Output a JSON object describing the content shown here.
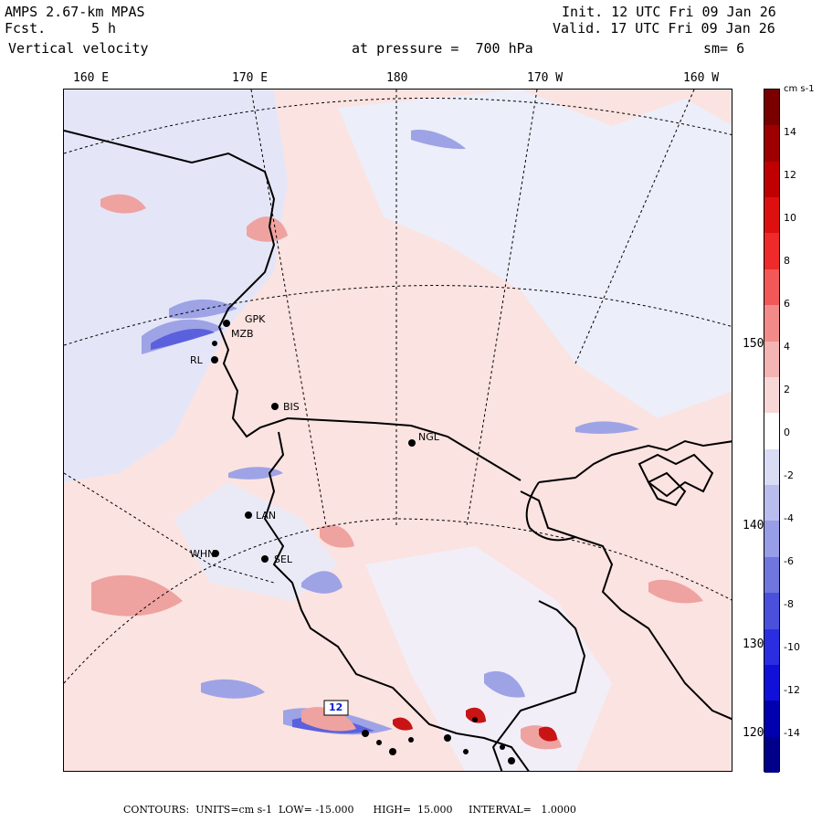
{
  "header": {
    "model": "AMPS 2.67-km MPAS",
    "fcst_label": "Fcst.",
    "fcst_value": "5 h",
    "field": "Vertical velocity",
    "init": "Init. 12 UTC Fri 09 Jan 26",
    "valid": "Valid. 17 UTC Fri 09 Jan 26",
    "pressure": "at pressure =  700 hPa",
    "smoothing": "sm= 6"
  },
  "map": {
    "lon_labels": [
      "160 E",
      "170 E",
      "180",
      "170 W",
      "160 W"
    ],
    "lat_labels": [
      "150 W",
      "140 W",
      "130 W",
      "120 W"
    ],
    "stations": [
      "GPK",
      "MZB",
      "RL",
      "BIS",
      "NGL",
      "LAN",
      "WHN",
      "SEL"
    ],
    "max_label": "12",
    "colors": {
      "positive": "#f4c7c3",
      "negative": "#c8cdf2",
      "coast": "#000000"
    }
  },
  "colorbar": {
    "unit": "cm s-1",
    "ticks": [
      "14",
      "12",
      "10",
      "8",
      "6",
      "4",
      "2",
      "0",
      "-2",
      "-4",
      "-6",
      "-8",
      "-10",
      "-12",
      "-14"
    ],
    "colors": [
      "#7a0000",
      "#9e0000",
      "#c00000",
      "#dd1010",
      "#ee2a2a",
      "#f25858",
      "#f28a8a",
      "#f4b4b4",
      "#f7d8d6",
      "#ffffff",
      "#dadcf4",
      "#b9bdee",
      "#979de6",
      "#6f76de",
      "#4a50dc",
      "#2a2ee0",
      "#1010d8",
      "#0000b0",
      "#00008a"
    ]
  },
  "footer": {
    "text": "CONTOURS:  UNITS=cm s-1  LOW= -15.000      HIGH=  15.000     INTERVAL=   1.0000"
  }
}
